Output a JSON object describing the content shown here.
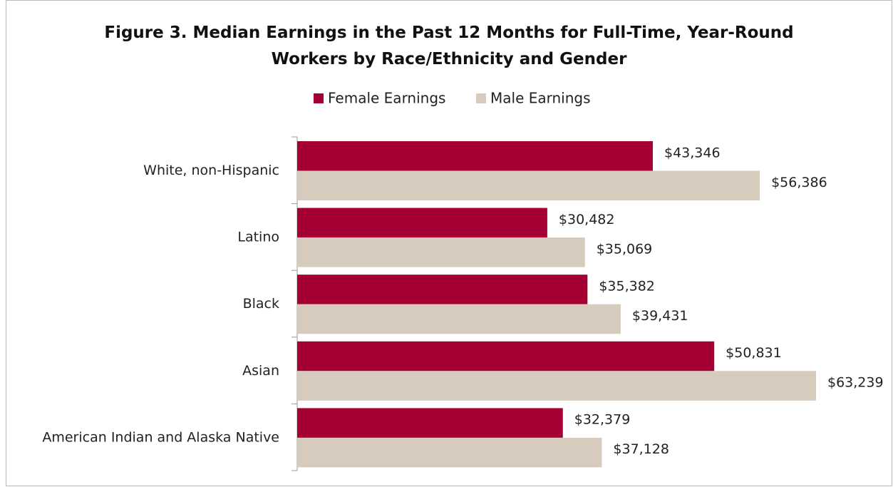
{
  "chart_data": {
    "type": "hbar",
    "title": "Figure 3. Median Earnings in the Past 12 Months for Full-Time, Year-Round Workers by Race/Ethnicity and Gender",
    "categories": [
      "White, non-Hispanic",
      "Latino",
      "Black",
      "Asian",
      "American Indian and Alaska Native"
    ],
    "series": [
      {
        "name": "Female Earnings",
        "color": "#a50034",
        "values": [
          43346,
          30482,
          35382,
          50831,
          32379
        ],
        "value_labels": [
          "$43,346",
          "$30,482",
          "$35,382",
          "$50,831",
          "$32,379"
        ]
      },
      {
        "name": "Male Earnings",
        "color": "#d6cbbd",
        "values": [
          56386,
          35069,
          39431,
          63239,
          37128
        ],
        "value_labels": [
          "$56,386",
          "$35,069",
          "$39,431",
          "$63,239",
          "$37,128"
        ]
      }
    ],
    "legend": "top"
  }
}
